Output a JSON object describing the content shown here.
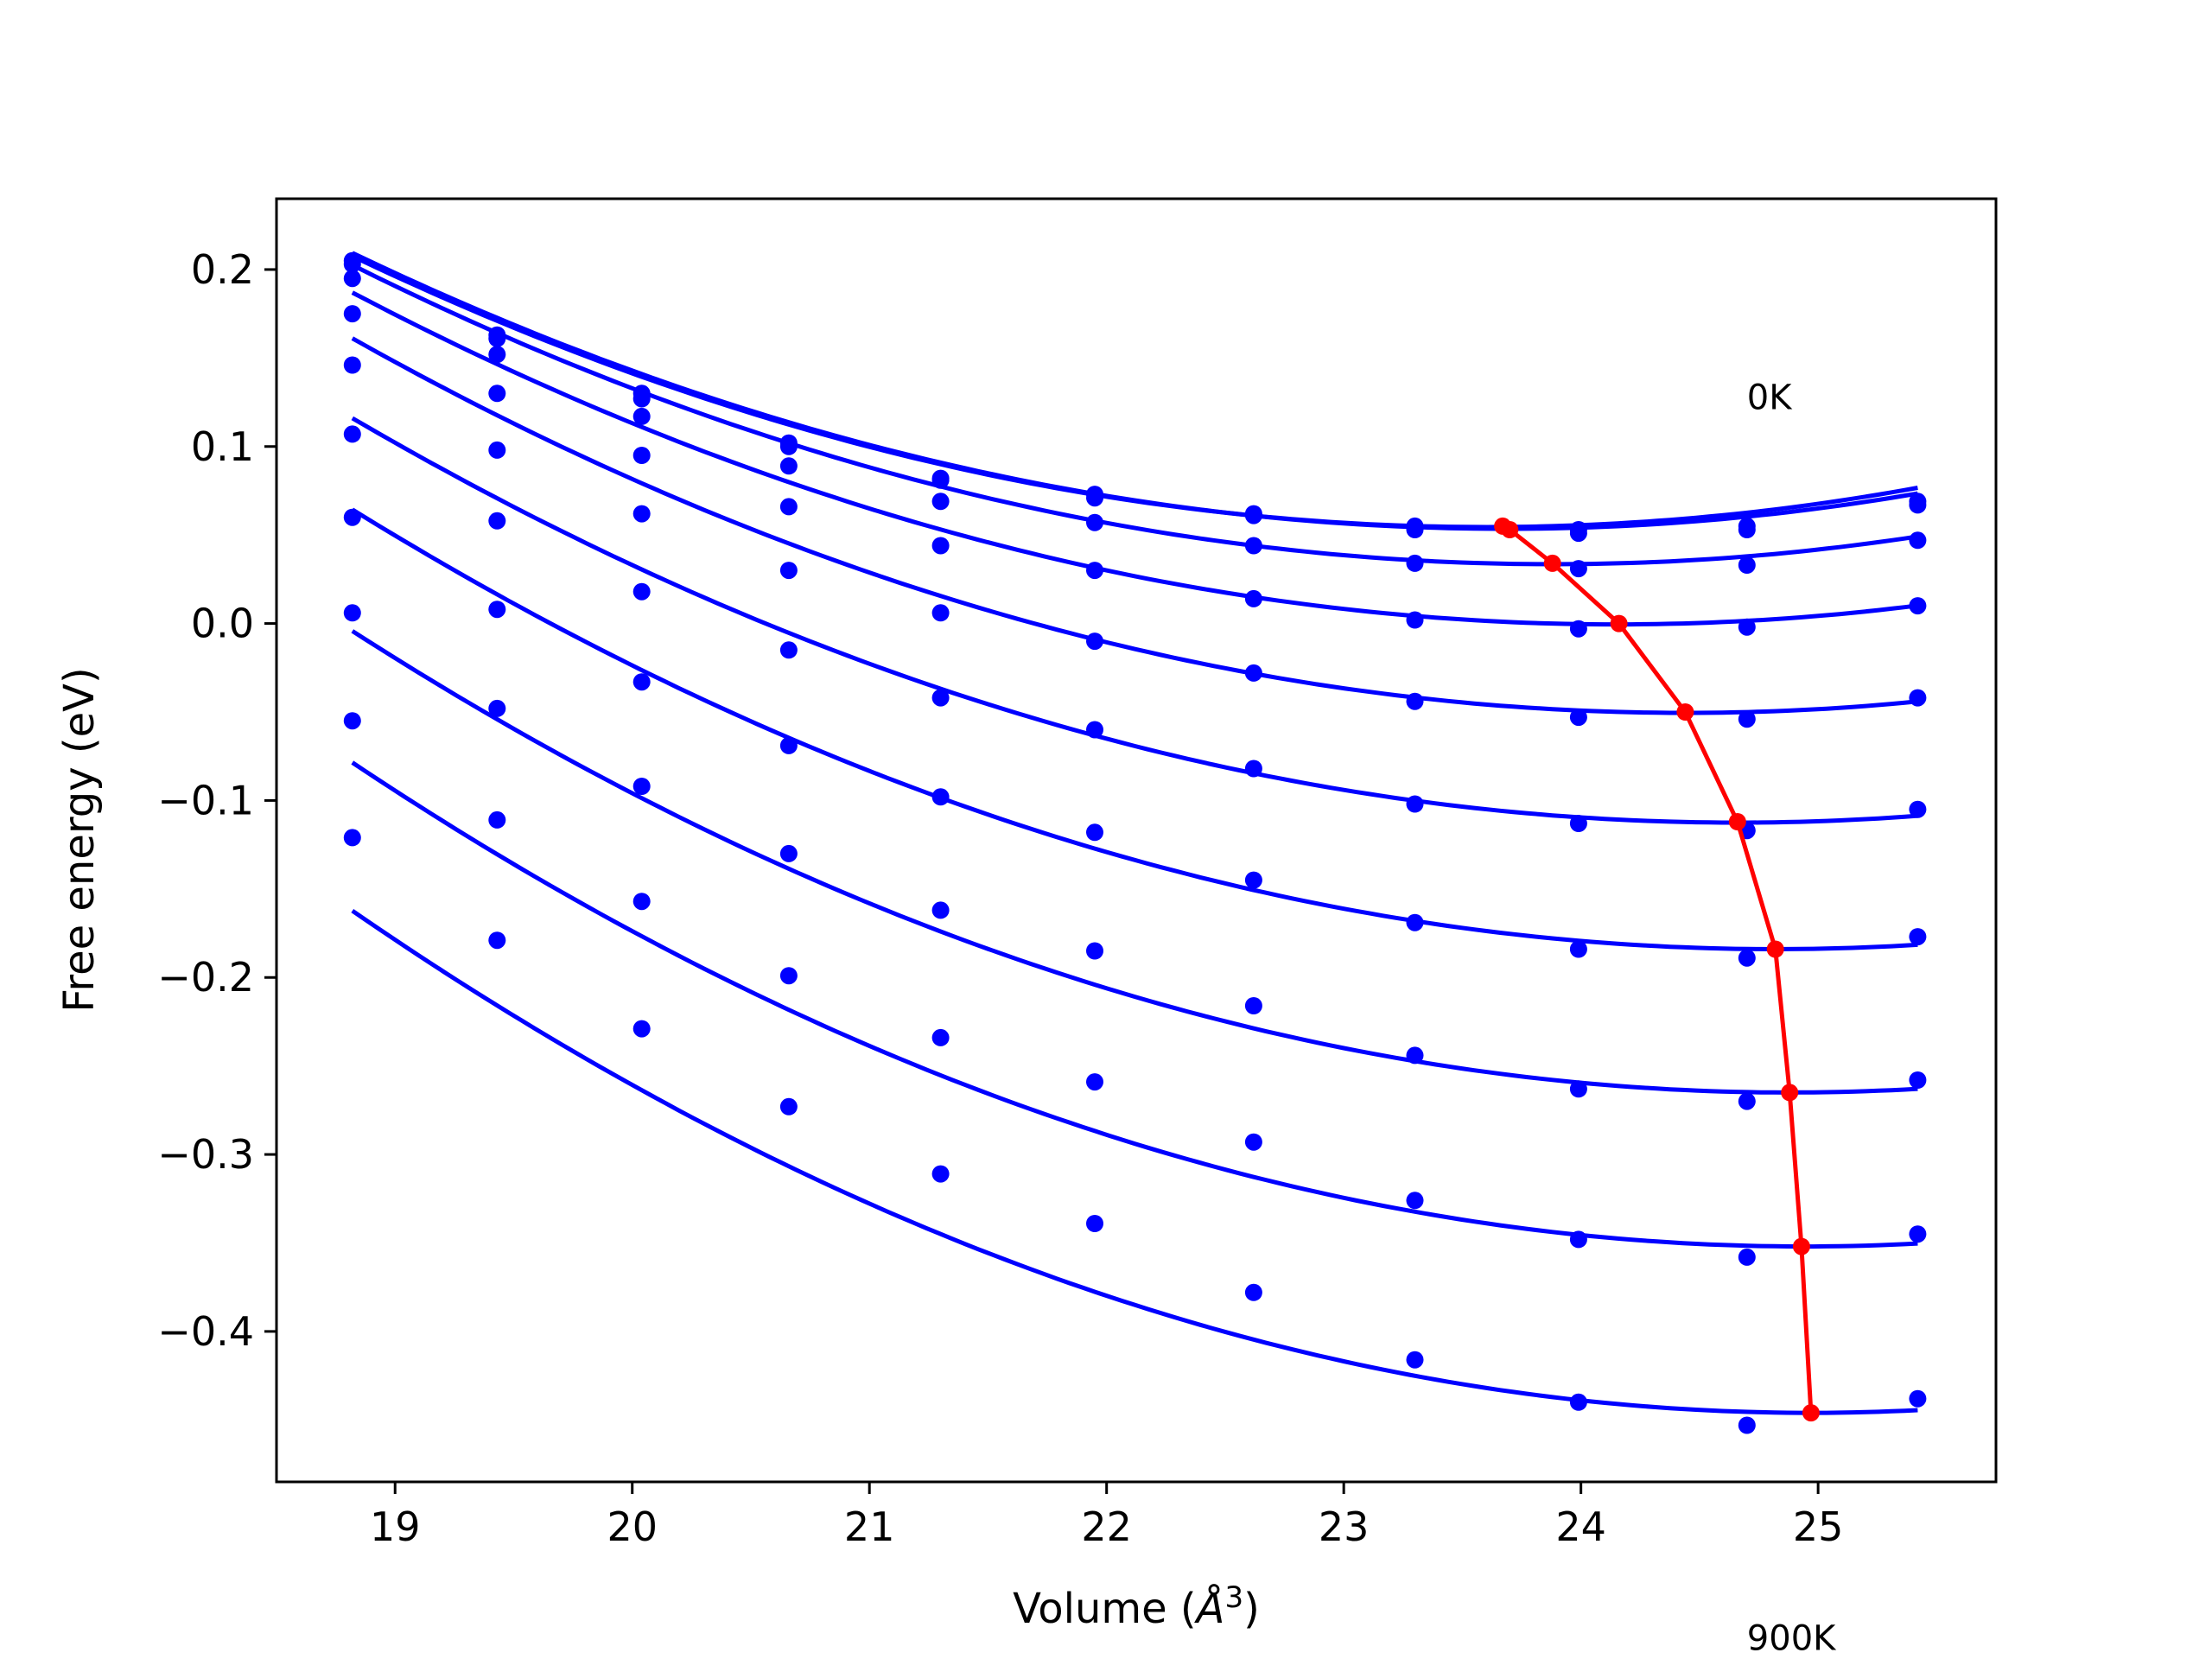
{
  "chart_data": {
    "type": "scatter",
    "title": "",
    "xlabel": "Volume (",
    "xlabel_unit": "Å",
    "xlabel_power": "3",
    "xlabel_close": ")",
    "ylabel": "Free energy (eV)",
    "xlim": [
      18.5,
      25.75
    ],
    "ylim": [
      -0.485,
      0.24
    ],
    "xticks": [
      19,
      20,
      21,
      22,
      23,
      24,
      25
    ],
    "yticks": [
      0.2,
      0.1,
      0.0,
      -0.1,
      -0.2,
      -0.3,
      -0.4
    ],
    "xtick_labels": [
      "19",
      "20",
      "21",
      "22",
      "23",
      "24",
      "25"
    ],
    "ytick_labels": [
      "0.2",
      "0.1",
      "0.0",
      "−0.1",
      "−0.2",
      "−0.3",
      "−0.4"
    ],
    "grid": false,
    "annotations": [
      {
        "text": "0K",
        "x": 24.7,
        "y": 0.121
      },
      {
        "text": "900K",
        "x": 24.7,
        "y": -0.58
      }
    ],
    "x": [
      18.82,
      19.43,
      20.04,
      20.66,
      21.3,
      21.95,
      22.62,
      23.3,
      23.99,
      24.7,
      25.42
    ],
    "series": [
      {
        "color": "#0000ff",
        "points": [
          0.205,
          0.163,
          0.13,
          0.102,
          0.082,
          0.073,
          0.062,
          0.055,
          0.053,
          0.055,
          0.069
        ],
        "fit": {
          "a": 0.0067,
          "b": 23.6,
          "c": 0.0545
        }
      },
      {
        "color": "#0000ff",
        "points": [
          0.203,
          0.161,
          0.127,
          0.1,
          0.081,
          0.071,
          0.061,
          0.053,
          0.051,
          0.053,
          0.067
        ],
        "fit": {
          "a": 0.0066,
          "b": 23.68,
          "c": 0.0535
        }
      },
      {
        "color": "#0000ff",
        "points": [
          0.195,
          0.152,
          0.117,
          0.089,
          0.069,
          0.057,
          0.044,
          0.034,
          0.031,
          0.033,
          0.047
        ],
        "fit": {
          "a": 0.0066,
          "b": 23.88,
          "c": 0.0335
        }
      },
      {
        "color": "#0000ff",
        "points": [
          0.175,
          0.13,
          0.095,
          0.066,
          0.044,
          0.03,
          0.014,
          0.002,
          -0.003,
          -0.002,
          0.01
        ],
        "fit": {
          "a": 0.0066,
          "b": 24.15,
          "c": -0.0005
        }
      },
      {
        "color": "#0000ff",
        "points": [
          0.146,
          0.098,
          0.062,
          0.03,
          0.006,
          -0.01,
          -0.028,
          -0.044,
          -0.053,
          -0.054,
          -0.042
        ],
        "fit": {
          "a": 0.0067,
          "b": 24.44,
          "c": -0.0505
        }
      },
      {
        "color": "#0000ff",
        "points": [
          0.107,
          0.058,
          0.018,
          -0.015,
          -0.042,
          -0.06,
          -0.082,
          -0.102,
          -0.113,
          -0.117,
          -0.105
        ],
        "fit": {
          "a": 0.0067,
          "b": 24.66,
          "c": -0.1125
        }
      },
      {
        "color": "#0000ff",
        "points": [
          0.06,
          0.008,
          -0.033,
          -0.069,
          -0.098,
          -0.118,
          -0.145,
          -0.169,
          -0.184,
          -0.189,
          -0.177
        ],
        "fit": {
          "a": 0.0069,
          "b": 24.82,
          "c": -0.184
        }
      },
      {
        "color": "#0000ff",
        "points": [
          0.006,
          -0.048,
          -0.092,
          -0.13,
          -0.162,
          -0.185,
          -0.216,
          -0.244,
          -0.263,
          -0.27,
          -0.258
        ],
        "fit": {
          "a": 0.0071,
          "b": 24.88,
          "c": -0.265
        }
      },
      {
        "color": "#0000ff",
        "points": [
          -0.055,
          -0.111,
          -0.157,
          -0.199,
          -0.234,
          -0.259,
          -0.293,
          -0.326,
          -0.348,
          -0.358,
          -0.345
        ],
        "fit": {
          "a": 0.0073,
          "b": 24.94,
          "c": -0.352
        }
      },
      {
        "color": "#0000ff",
        "points": [
          -0.121,
          -0.179,
          -0.229,
          -0.273,
          -0.311,
          -0.339,
          -0.378,
          -0.416,
          -0.44,
          -0.453,
          -0.438
        ],
        "fit": {
          "a": 0.0075,
          "b": 24.97,
          "c": -0.446
        }
      }
    ],
    "minima": {
      "color": "#ff0000",
      "x": [
        23.67,
        23.7,
        23.88,
        24.16,
        24.44,
        24.66,
        24.82,
        24.88,
        24.93,
        24.97
      ],
      "y": [
        0.055,
        0.053,
        0.034,
        0.0,
        -0.05,
        -0.112,
        -0.184,
        -0.265,
        -0.352,
        -0.446
      ]
    }
  }
}
